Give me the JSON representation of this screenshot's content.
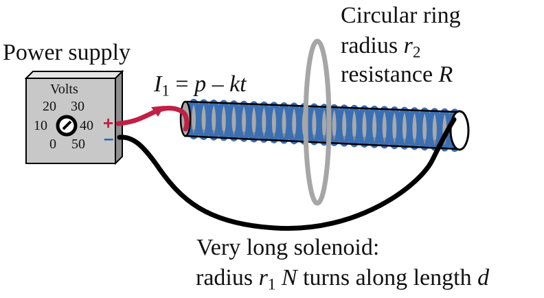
{
  "labels": {
    "power_supply": "Power supply",
    "current_symbol": "I",
    "current_sub": "1",
    "current_rhs_1": "= ",
    "current_p": "p",
    "current_minus": " – ",
    "current_kt": "kt",
    "ring_title": "Circular ring",
    "ring_radius_word": "radius ",
    "ring_radius_symbol": "r",
    "ring_radius_sub": "2",
    "ring_resistance_word": "resistance ",
    "ring_resistance_symbol": "R",
    "solenoid_title": "Very long solenoid:",
    "solenoid_radius_word": "radius ",
    "solenoid_radius_symbol": "r",
    "solenoid_radius_sub": "1",
    "solenoid_N": "N",
    "solenoid_turns_text": " turns along length ",
    "solenoid_d": "d"
  },
  "dial": {
    "title": "Volts",
    "ticks": [
      "0",
      "10",
      "20",
      "30",
      "40",
      "50"
    ],
    "plus": "+",
    "minus": "–"
  },
  "colors": {
    "box_face": "#c8c8c8",
    "box_top": "#e6e6e6",
    "box_side": "#8f8f8f",
    "coil": "#3a6fb4",
    "core": "#a9a9a9",
    "ring": "#a6a6a6",
    "red_wire": "#c21f45",
    "black_wire": "#000000",
    "plus": "#c21f45",
    "minus": "#2b66b3"
  }
}
